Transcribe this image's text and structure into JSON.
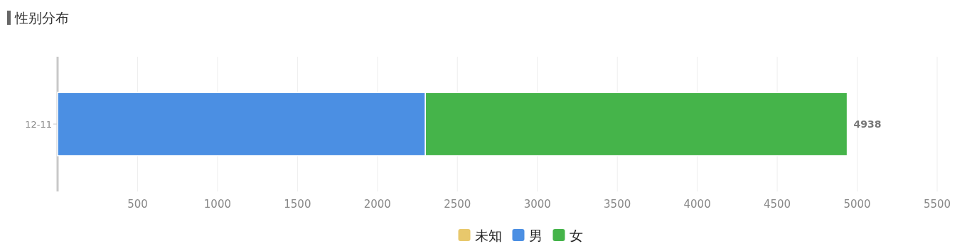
{
  "chart_data": {
    "type": "bar",
    "orientation": "horizontal",
    "stacked": true,
    "title": "性别分布",
    "categories": [
      "12-11"
    ],
    "series": [
      {
        "name": "未知",
        "color": "#e8c86c",
        "values": [
          0
        ]
      },
      {
        "name": "男",
        "color": "#4b8fe3",
        "values": [
          2300
        ]
      },
      {
        "name": "女",
        "color": "#45b44a",
        "values": [
          2638
        ]
      }
    ],
    "totals": [
      "4938"
    ],
    "xlim": [
      0,
      5500
    ],
    "xticks": [
      {
        "value": 0,
        "label": null
      },
      500,
      1000,
      1500,
      2000,
      2500,
      3000,
      3500,
      4000,
      4500,
      5000,
      5500
    ],
    "grid": "x",
    "legend": "bottom"
  }
}
